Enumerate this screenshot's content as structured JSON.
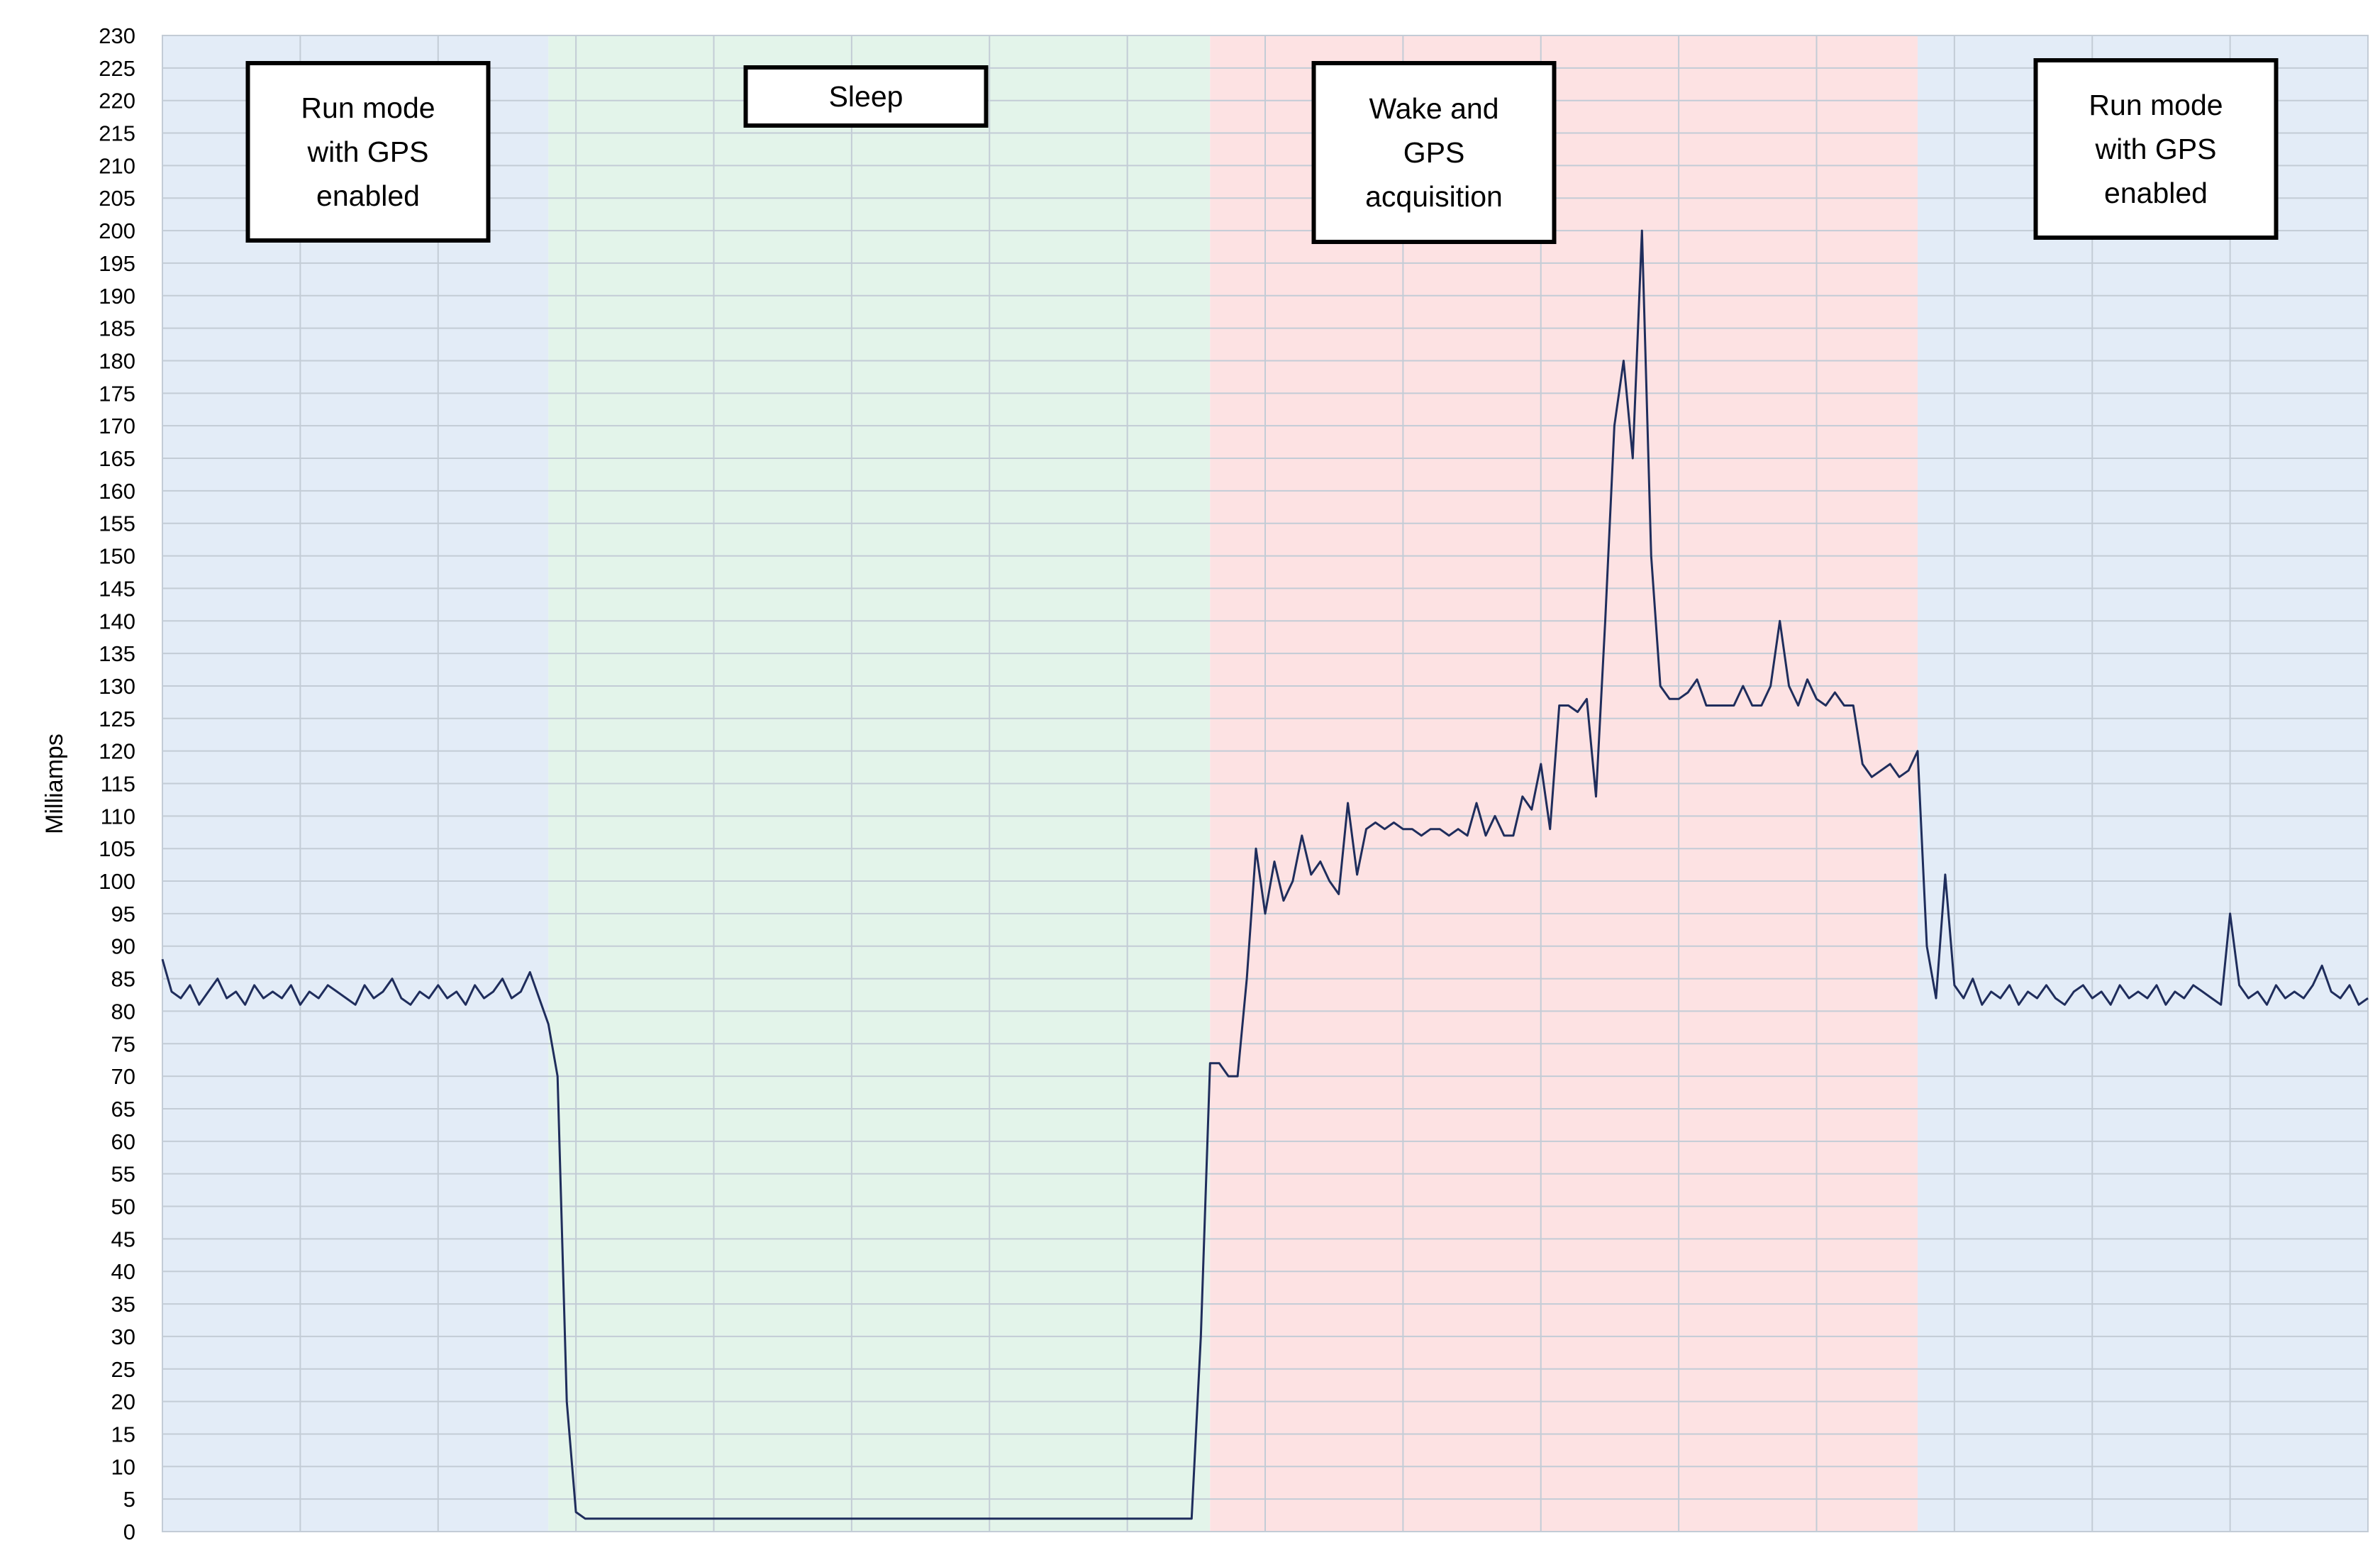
{
  "chart_data": {
    "type": "line",
    "y_label": "Milliamps",
    "ylim": [
      0,
      230
    ],
    "yticks": [
      0,
      5,
      10,
      15,
      20,
      25,
      30,
      35,
      40,
      45,
      50,
      55,
      60,
      65,
      70,
      75,
      80,
      85,
      90,
      95,
      100,
      105,
      110,
      115,
      120,
      125,
      130,
      135,
      140,
      145,
      150,
      155,
      160,
      165,
      170,
      175,
      180,
      185,
      190,
      195,
      200,
      205,
      210,
      215,
      220,
      225,
      230
    ],
    "grid": true,
    "xlim": [
      0,
      240
    ],
    "series": [
      {
        "color": "#1f2d5c",
        "values": [
          88,
          83,
          82,
          84,
          81,
          83,
          85,
          82,
          83,
          81,
          84,
          82,
          83,
          82,
          84,
          81,
          83,
          82,
          84,
          83,
          82,
          81,
          84,
          82,
          83,
          85,
          82,
          81,
          83,
          82,
          84,
          82,
          83,
          81,
          84,
          82,
          83,
          85,
          82,
          83,
          86,
          82,
          78,
          70,
          20,
          3,
          2,
          2,
          2,
          2,
          2,
          2,
          2,
          2,
          2,
          2,
          2,
          2,
          2,
          2,
          2,
          2,
          2,
          2,
          2,
          2,
          2,
          2,
          2,
          2,
          2,
          2,
          2,
          2,
          2,
          2,
          2,
          2,
          2,
          2,
          2,
          2,
          2,
          2,
          2,
          2,
          2,
          2,
          2,
          2,
          2,
          2,
          2,
          2,
          2,
          2,
          2,
          2,
          2,
          2,
          2,
          2,
          2,
          2,
          2,
          2,
          2,
          2,
          2,
          2,
          2,
          2,
          2,
          30,
          72,
          72,
          70,
          70,
          85,
          105,
          95,
          103,
          97,
          100,
          107,
          101,
          103,
          100,
          98,
          112,
          101,
          108,
          109,
          108,
          109,
          108,
          108,
          107,
          108,
          108,
          107,
          108,
          107,
          112,
          107,
          110,
          107,
          107,
          113,
          111,
          118,
          108,
          127,
          127,
          126,
          128,
          113,
          140,
          170,
          180,
          165,
          200,
          150,
          130,
          128,
          128,
          129,
          131,
          127,
          127,
          127,
          127,
          130,
          127,
          127,
          130,
          140,
          130,
          127,
          131,
          128,
          127,
          129,
          127,
          127,
          118,
          116,
          117,
          118,
          116,
          117,
          120,
          90,
          82,
          101,
          84,
          82,
          85,
          81,
          83,
          82,
          84,
          81,
          83,
          82,
          84,
          82,
          81,
          83,
          84,
          82,
          83,
          81,
          84,
          82,
          83,
          82,
          84,
          81,
          83,
          82,
          84,
          83,
          82,
          81,
          95,
          84,
          82,
          83,
          81,
          84,
          82,
          83,
          82,
          84,
          87,
          83,
          82,
          84,
          81,
          82
        ]
      }
    ],
    "regions": [
      {
        "lines": [
          "Run mode",
          "with GPS",
          "enabled"
        ],
        "start": 0,
        "end": 42,
        "color": "#e3ecf7"
      },
      {
        "lines": [
          "Sleep"
        ],
        "start": 42,
        "end": 114,
        "color": "#e3f4ea"
      },
      {
        "lines": [
          "Wake and",
          "GPS",
          "acquisition"
        ],
        "start": 114,
        "end": 191,
        "color": "#fde2e3"
      },
      {
        "lines": [
          "Run mode",
          "with GPS",
          "enabled"
        ],
        "start": 191,
        "end": 240,
        "color": "#e3ecf7"
      }
    ]
  }
}
